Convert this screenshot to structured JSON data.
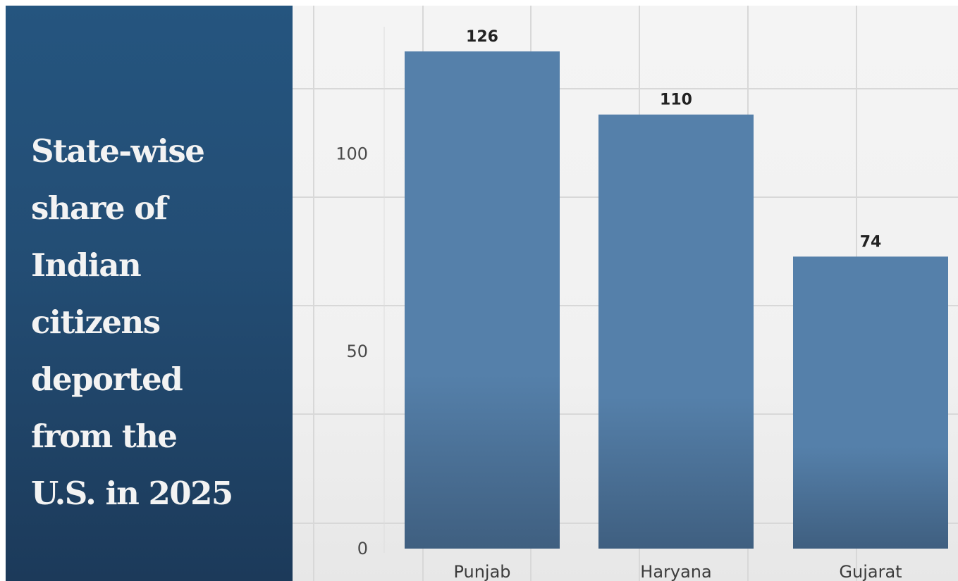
{
  "title_lines": "State-wise\nshare of\nIndian\ncitizens\ndeported\nfrom the\nU.S. in 2025",
  "colors": {
    "panel": "#234d74",
    "bar": "#5580aa",
    "title_text": "#f3f3f3"
  },
  "chart_data": {
    "type": "bar",
    "title": "State-wise share of Indian citizens deported from the U.S. in 2025",
    "categories": [
      "Punjab",
      "Haryana",
      "Gujarat"
    ],
    "values": [
      126,
      110,
      74
    ],
    "data_labels": [
      "126",
      "110",
      "74"
    ],
    "yticks": [
      0,
      50,
      100
    ],
    "ytick_labels": [
      "0",
      "50",
      "100"
    ],
    "ylim": [
      0,
      126
    ],
    "xlabel": "",
    "ylabel": "",
    "grid": true,
    "legend": "none"
  }
}
